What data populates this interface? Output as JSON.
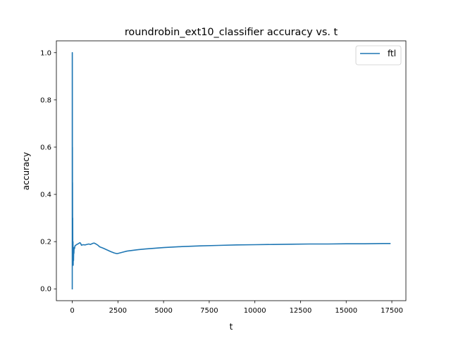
{
  "chart_data": {
    "type": "line",
    "title": "roundrobin_ext10_classifier accuracy vs. t",
    "xlabel": "t",
    "ylabel": "accuracy",
    "xlim": [
      -870,
      18270
    ],
    "ylim": [
      -0.05,
      1.05
    ],
    "xticks": [
      0,
      2500,
      5000,
      7500,
      10000,
      12500,
      15000,
      17500
    ],
    "xtick_labels": [
      "0",
      "2500",
      "5000",
      "7500",
      "10000",
      "12500",
      "15000",
      "17500"
    ],
    "yticks": [
      0.0,
      0.2,
      0.4,
      0.6,
      0.8,
      1.0
    ],
    "ytick_labels": [
      "0.0",
      "0.2",
      "0.4",
      "0.6",
      "0.8",
      "1.0"
    ],
    "grid": false,
    "legend_position": "upper right",
    "series": [
      {
        "name": "ftl",
        "color": "#1f77b4",
        "x": [
          0,
          1,
          2,
          3,
          5,
          8,
          10,
          12,
          15,
          20,
          25,
          30,
          40,
          50,
          60,
          70,
          80,
          90,
          100,
          120,
          150,
          200,
          250,
          300,
          350,
          400,
          450,
          500,
          600,
          700,
          800,
          900,
          1000,
          1100,
          1200,
          1300,
          1400,
          1500,
          1700,
          1900,
          2100,
          2300,
          2450,
          2600,
          2800,
          3000,
          3300,
          3600,
          4000,
          4500,
          5000,
          6000,
          7000,
          8000,
          9000,
          10000,
          11000,
          12000,
          13000,
          14000,
          15000,
          16000,
          17000,
          17400
        ],
        "values": [
          0.0,
          1.0,
          0.5,
          1.0,
          0.8,
          0.4,
          0.6,
          0.3,
          0.45,
          0.2,
          0.3,
          0.12,
          0.2,
          0.1,
          0.15,
          0.12,
          0.165,
          0.15,
          0.175,
          0.17,
          0.182,
          0.185,
          0.188,
          0.19,
          0.192,
          0.195,
          0.194,
          0.185,
          0.187,
          0.186,
          0.188,
          0.19,
          0.188,
          0.192,
          0.194,
          0.19,
          0.185,
          0.178,
          0.172,
          0.165,
          0.158,
          0.152,
          0.149,
          0.152,
          0.156,
          0.16,
          0.163,
          0.166,
          0.169,
          0.172,
          0.175,
          0.179,
          0.182,
          0.184,
          0.186,
          0.187,
          0.188,
          0.189,
          0.19,
          0.19,
          0.191,
          0.191,
          0.192,
          0.192
        ]
      }
    ]
  }
}
